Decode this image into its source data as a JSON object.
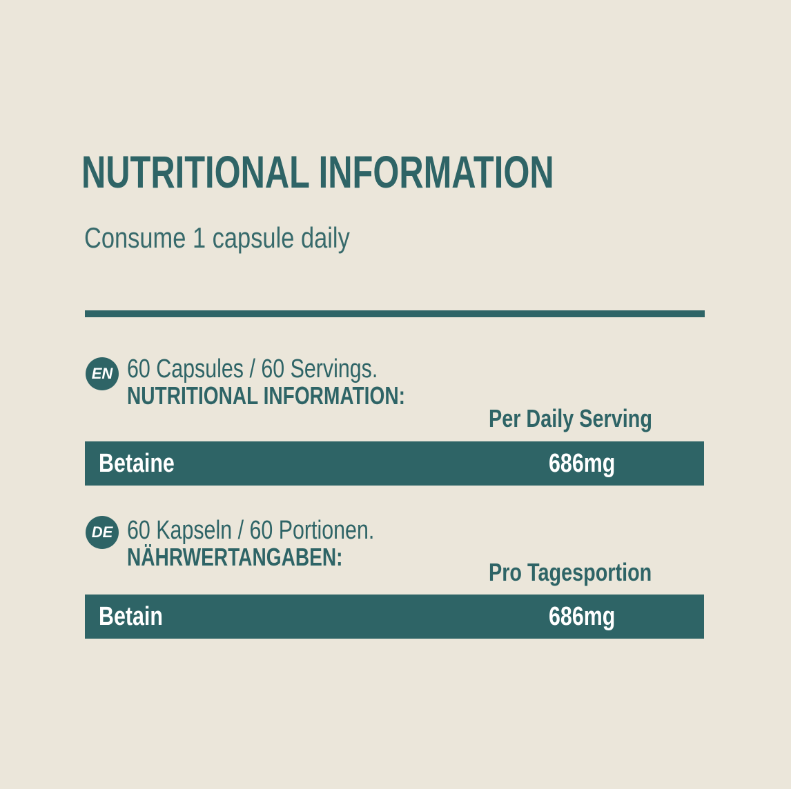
{
  "title": "NUTRITIONAL INFORMATION",
  "subtitle": "Consume 1 capsule daily",
  "colors": {
    "accent": "#2e6466",
    "background": "#ebe6da"
  },
  "sections": [
    {
      "lang": "EN",
      "line1": "60 Capsules / 60 Servings.",
      "line2": "NUTRITIONAL INFORMATION:",
      "column_header": "Per Daily Serving",
      "row": {
        "name": "Betaine",
        "value": "686mg"
      }
    },
    {
      "lang": "DE",
      "line1": "60 Kapseln / 60 Portionen.",
      "line2": "NÄHRWERTANGABEN:",
      "column_header": "Pro Tagesportion",
      "row": {
        "name": "Betain",
        "value": "686mg"
      }
    }
  ]
}
